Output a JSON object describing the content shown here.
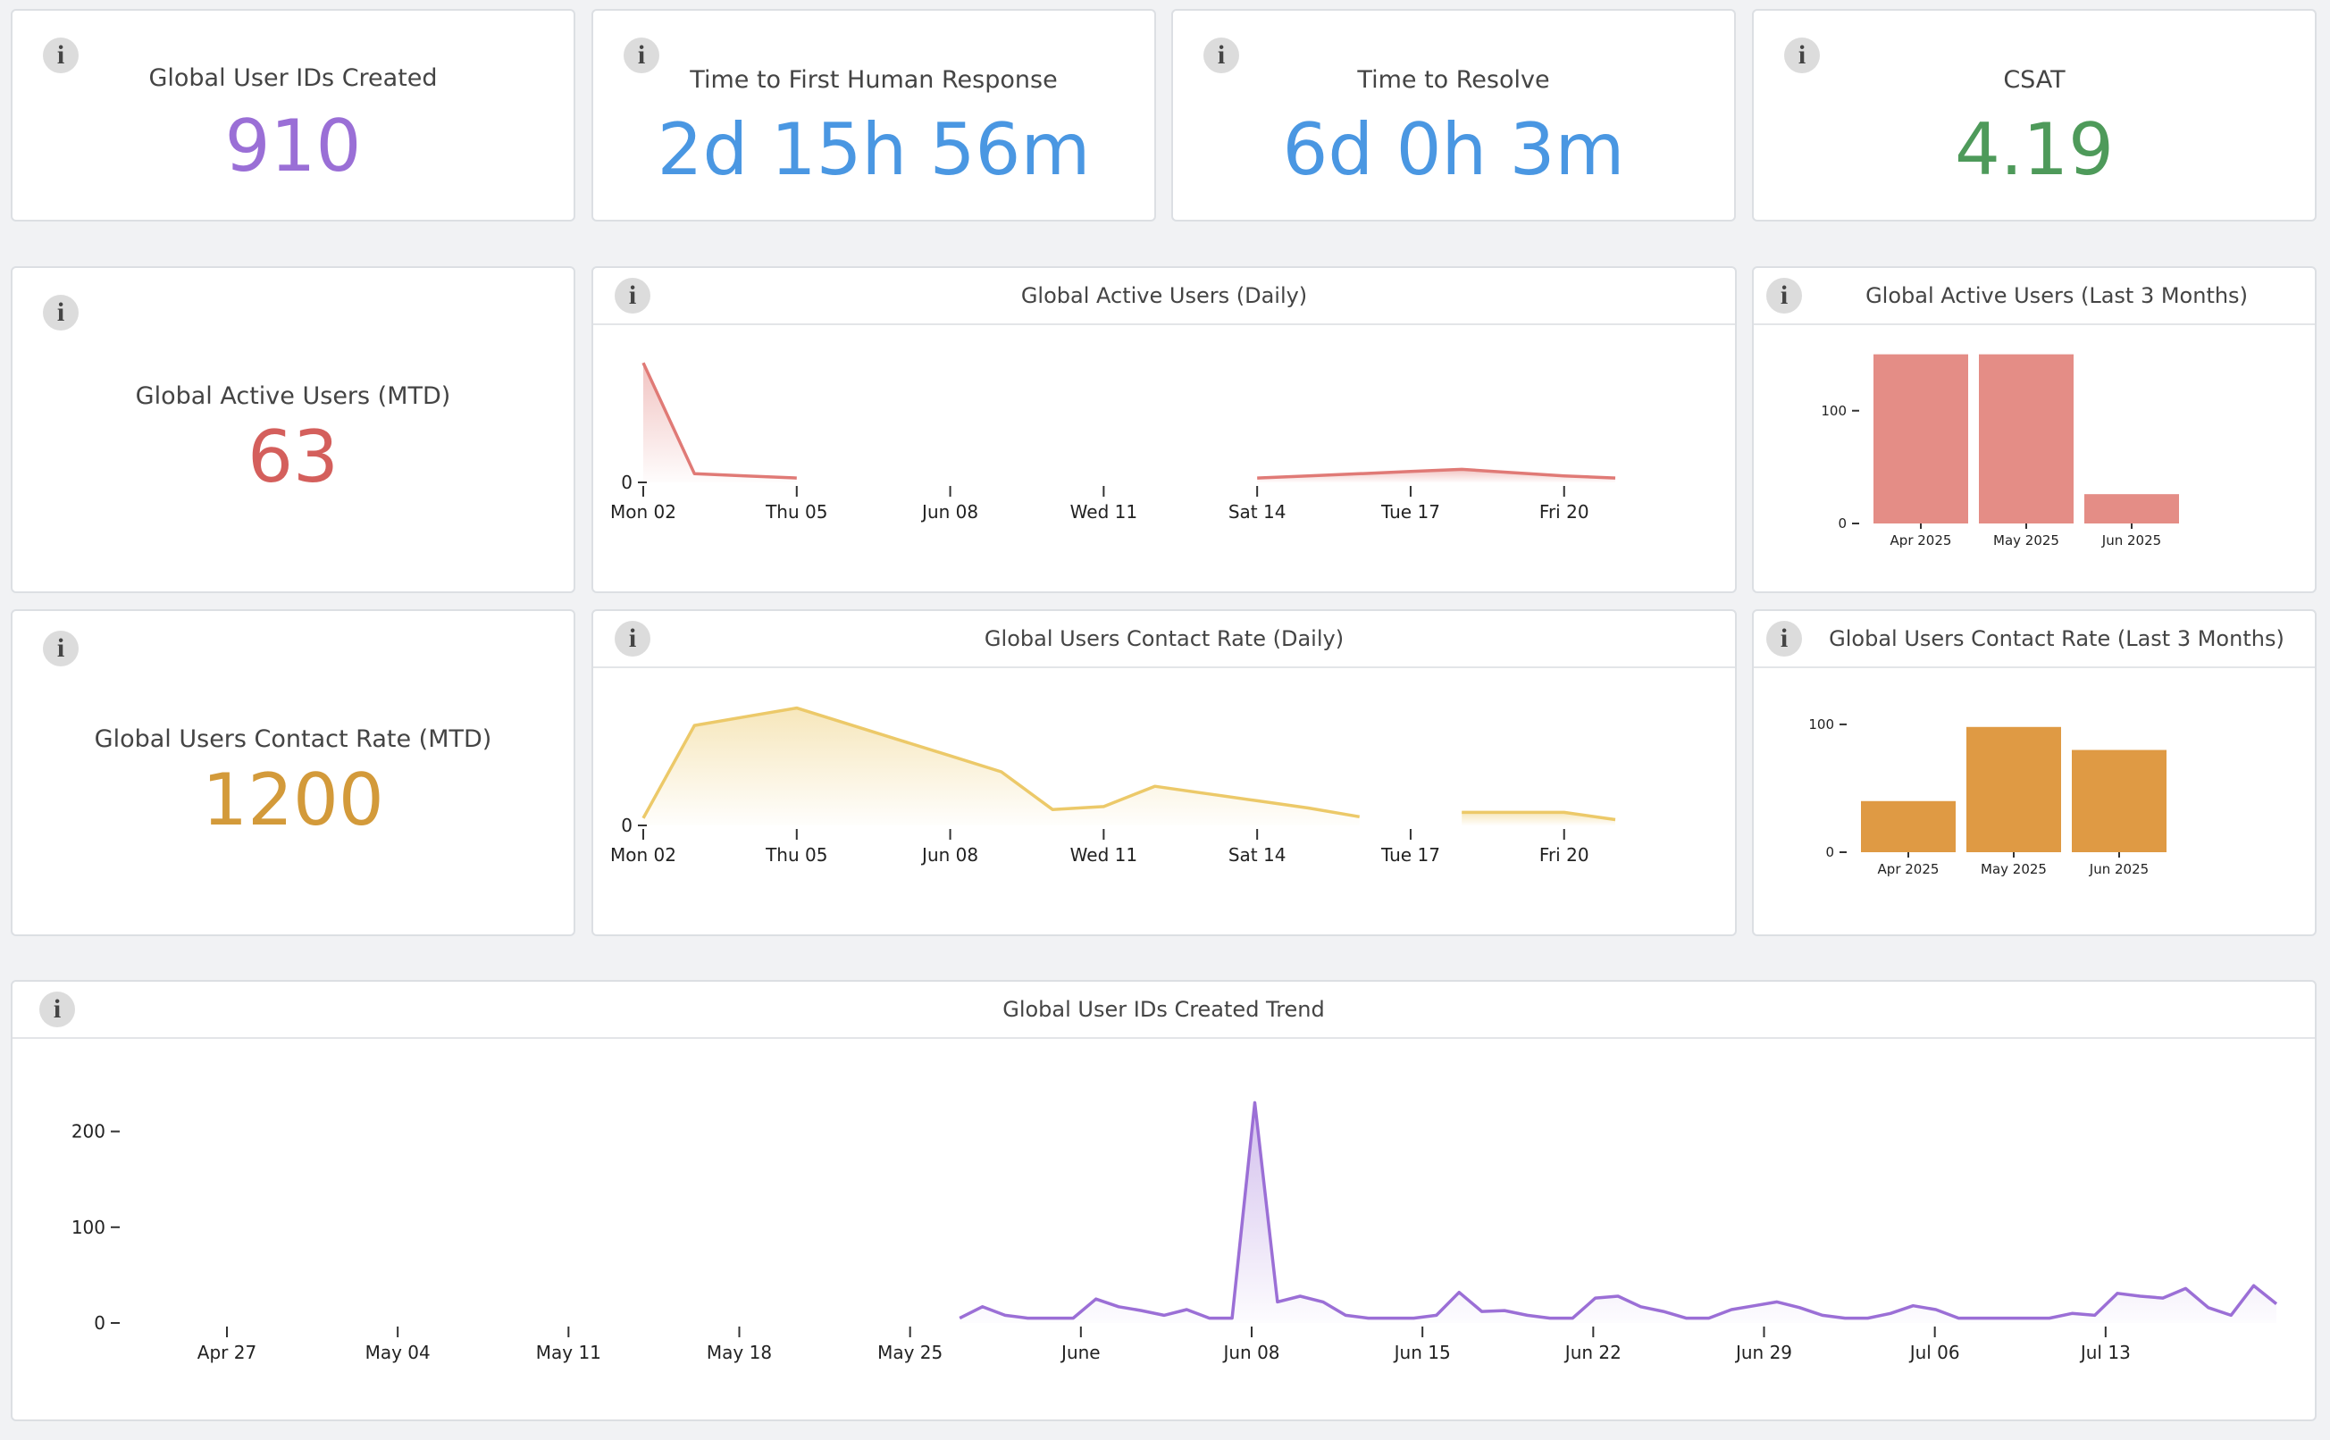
{
  "stats": [
    {
      "title": "Global User IDs Created",
      "value": "910",
      "color": "#9a6fd6"
    },
    {
      "title": "Time to First Human Response",
      "value": "2d 15h 56m",
      "color": "#4a97e2"
    },
    {
      "title": "Time to Resolve",
      "value": "6d 0h 3m",
      "color": "#4a97e2"
    },
    {
      "title": "CSAT",
      "value": "4.19",
      "color": "#4e9a5a"
    },
    {
      "title": "Global Active Users (MTD)",
      "value": "63",
      "color": "#d45f5c"
    },
    {
      "title": "Global Users Contact Rate (MTD)",
      "value": "1200",
      "color": "#d39a3a"
    }
  ],
  "info_icon_glyph": "i",
  "chart_data": [
    {
      "id": "active_daily",
      "type": "area",
      "title": "Global Active Users (Daily)",
      "color": "#e07a76",
      "x": [
        "Mon 02",
        "Tue 03",
        "Wed 04",
        "Thu 05",
        "Fri 06",
        "Sat 07",
        "Jun 08",
        "Mon 09",
        "Tue 10",
        "Wed 11",
        "Thu 12",
        "Fri 13",
        "Sat 14",
        "Sun 15",
        "Mon 16",
        "Tue 17",
        "Wed 18",
        "Thu 19",
        "Fri 20",
        "Sat 21"
      ],
      "values": [
        110,
        8,
        6,
        4,
        null,
        null,
        null,
        null,
        null,
        null,
        null,
        null,
        4,
        6,
        8,
        10,
        12,
        9,
        6,
        4
      ],
      "tick_labels": [
        "Mon 02",
        "Thu 05",
        "Jun 08",
        "Wed 11",
        "Sat 14",
        "Tue 17",
        "Fri 20"
      ],
      "y_ticks": [
        0
      ],
      "ylim": [
        0,
        120
      ]
    },
    {
      "id": "active_3m",
      "type": "bar",
      "title": "Global Active Users (Last 3 Months)",
      "color": "#e48d86",
      "categories": [
        "Apr 2025",
        "May 2025",
        "Jun 2025"
      ],
      "values": [
        150,
        150,
        26
      ],
      "y_ticks": [
        0,
        100
      ],
      "ylim": [
        0,
        160
      ]
    },
    {
      "id": "contact_daily",
      "type": "area",
      "title": "Global Users Contact Rate (Daily)",
      "color": "#ecc969",
      "x": [
        "Mon 02",
        "Tue 03",
        "Wed 04",
        "Thu 05",
        "Fri 06",
        "Sat 07",
        "Jun 08",
        "Mon 09",
        "Tue 10",
        "Wed 11",
        "Thu 12",
        "Fri 13",
        "Sat 14",
        "Sun 15",
        "Mon 16",
        "Tue 17",
        "Wed 18",
        "Thu 19",
        "Fri 20",
        "Sat 21"
      ],
      "values": [
        5,
        69,
        75,
        81,
        70,
        59,
        48,
        37,
        11,
        13,
        27,
        22,
        17,
        12,
        6,
        null,
        9,
        9,
        9,
        4
      ],
      "tick_labels": [
        "Mon 02",
        "Thu 05",
        "Jun 08",
        "Wed 11",
        "Sat 14",
        "Tue 17",
        "Fri 20"
      ],
      "y_ticks": [
        0
      ],
      "ylim": [
        0,
        90
      ]
    },
    {
      "id": "contact_3m",
      "type": "bar",
      "title": "Global Users Contact Rate (Last 3 Months)",
      "color": "#df9a44",
      "categories": [
        "Apr 2025",
        "May 2025",
        "Jun 2025"
      ],
      "values": [
        40,
        98,
        80
      ],
      "y_ticks": [
        0,
        100
      ],
      "ylim": [
        0,
        130
      ]
    },
    {
      "id": "ids_trend",
      "type": "area",
      "title": "Global User IDs Created Trend",
      "color": "#9b6fd6",
      "x_start": "Apr 20",
      "tick_labels": [
        "Apr 27",
        "May 04",
        "May 11",
        "May 18",
        "May 25",
        "June",
        "Jun 08",
        "Jun 15",
        "Jun 22",
        "Jun 29",
        "Jul 06",
        "Jul 13"
      ],
      "values": [
        null,
        null,
        null,
        null,
        null,
        null,
        null,
        null,
        null,
        null,
        null,
        null,
        null,
        null,
        null,
        null,
        null,
        null,
        null,
        null,
        null,
        null,
        null,
        null,
        null,
        null,
        null,
        null,
        null,
        null,
        null,
        null,
        null,
        null,
        null,
        null,
        null,
        5,
        17,
        8,
        5,
        5,
        5,
        25,
        17,
        13,
        8,
        14,
        5,
        5,
        230,
        22,
        28,
        22,
        8,
        5,
        5,
        5,
        8,
        32,
        12,
        13,
        8,
        5,
        5,
        26,
        28,
        17,
        12,
        5,
        5,
        14,
        18,
        22,
        16,
        8,
        5,
        5,
        10,
        18,
        14,
        5,
        5,
        5,
        5,
        5,
        10,
        8,
        31,
        28,
        26,
        36,
        16,
        8,
        39,
        20
      ],
      "y_ticks": [
        0,
        100,
        200
      ],
      "ylim": [
        0,
        250
      ]
    }
  ]
}
